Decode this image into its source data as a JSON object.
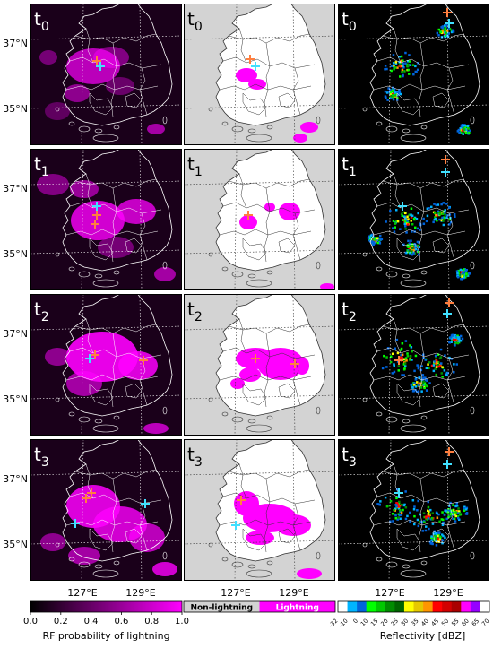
{
  "rows": [
    {
      "label_base": "t",
      "label_sub": "0"
    },
    {
      "label_base": "t",
      "label_sub": "1"
    },
    {
      "label_base": "t",
      "label_sub": "2"
    },
    {
      "label_base": "t",
      "label_sub": "3"
    }
  ],
  "lat_labels": [
    "37°N",
    "35°N"
  ],
  "lon_labels": [
    "127°E",
    "129°E"
  ],
  "colorbars": {
    "probability": {
      "ticks": [
        "0.0",
        "0.2",
        "0.4",
        "0.6",
        "0.8",
        "1.0"
      ],
      "label": "RF probability of lightning",
      "color_low": "#000000",
      "color_high": "#ff00ff"
    },
    "binary": {
      "left_label": "Non-lightning",
      "right_label": "Lightning",
      "color_non": "#d3d3d3",
      "color_yes": "#ff00ff"
    },
    "reflectivity": {
      "ticks": [
        "-32",
        "-10",
        "0",
        "10",
        "15",
        "20",
        "25",
        "30",
        "35",
        "40",
        "45",
        "50",
        "55",
        "60",
        "65",
        "70"
      ],
      "label": "Reflectivity [dBZ]",
      "colors": [
        "#ffffff",
        "#00b4ff",
        "#0064dc",
        "#00ff00",
        "#00c800",
        "#008c00",
        "#006400",
        "#ffff00",
        "#e6c800",
        "#ff9600",
        "#ff0000",
        "#d20000",
        "#aa0000",
        "#ff00ff",
        "#9600ff",
        "#ffffff"
      ]
    }
  },
  "colors": {
    "marker_orange": "#ff7f3f",
    "marker_cyan": "#40e0ff",
    "magenta": "#ff00ff"
  }
}
